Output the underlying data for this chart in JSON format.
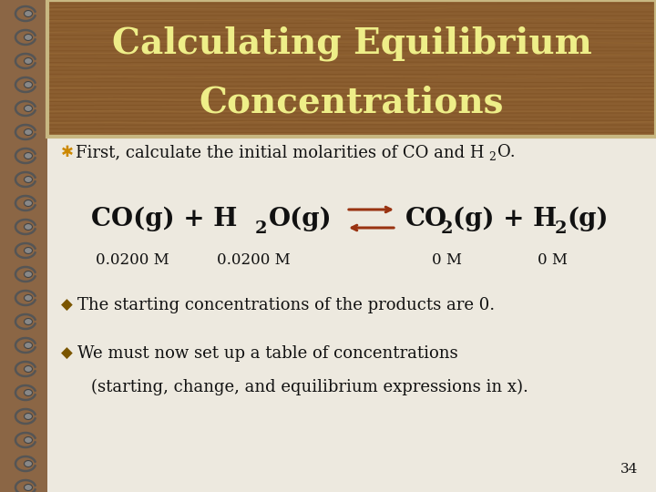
{
  "title_line1": "Calculating Equilibrium",
  "title_line2": "Concentrations",
  "title_color": "#EEEE88",
  "title_bg_color_top": "#A0714A",
  "title_bg_color_mid": "#7A4E28",
  "title_border_color": "#C8B882",
  "slide_bg_color": "#C8B89A",
  "body_bg_color": "#EDE9DF",
  "text_color": "#111111",
  "arrow_color": "#993311",
  "bullet_star_color": "#CC8800",
  "bullet_diamond_color": "#7A5500",
  "page_number": "34",
  "concentrations": [
    "0.0200 M",
    "0.0200 M",
    "0 M",
    "0 M"
  ],
  "bullet2_text": "The starting concentrations of the products are 0.",
  "bullet3_line1": "We must now set up a table of concentrations",
  "bullet3_line2": "(starting, change, and equilibrium expressions in x)."
}
